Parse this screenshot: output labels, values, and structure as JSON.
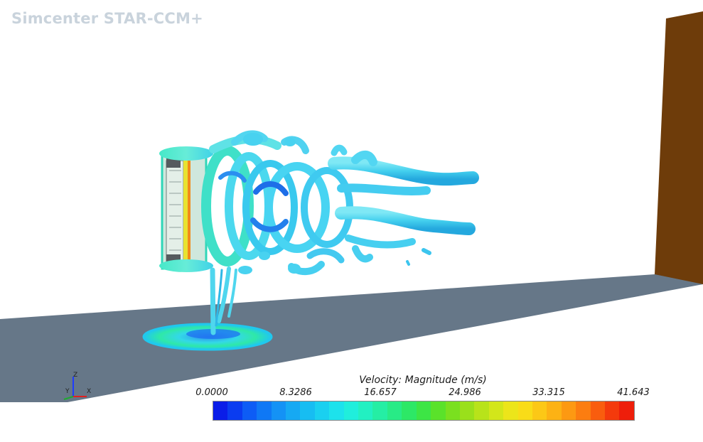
{
  "app": {
    "watermark": "Simcenter STAR-CCM+"
  },
  "legend": {
    "title": "Velocity: Magnitude (m/s)",
    "ticks": [
      "0.0000",
      "8.3286",
      "16.657",
      "24.986",
      "33.315",
      "41.643"
    ],
    "colors": [
      "#0a1de8",
      "#0a3cf0",
      "#0d5cf5",
      "#0f78f5",
      "#1492f5",
      "#16a9f3",
      "#17bdf2",
      "#1ad0f0",
      "#1de2ec",
      "#20eedc",
      "#22f0c2",
      "#25eea4",
      "#28eb86",
      "#2de866",
      "#3de545",
      "#5ae22a",
      "#7ae01f",
      "#9ae01b",
      "#b8e31a",
      "#d3e61a",
      "#ece51a",
      "#f9dc18",
      "#fcc816",
      "#fdb214",
      "#fd9912",
      "#fc7d10",
      "#f95d0e",
      "#f43a0c",
      "#ee1e0a"
    ]
  },
  "axes": {
    "z": "Z",
    "y": "Y",
    "x": "X"
  },
  "scene": {
    "floor_color": "#667788",
    "wall_color": "#6e3c0a",
    "vortex_color": "#4fd9f0",
    "object": "propeller-fan"
  }
}
